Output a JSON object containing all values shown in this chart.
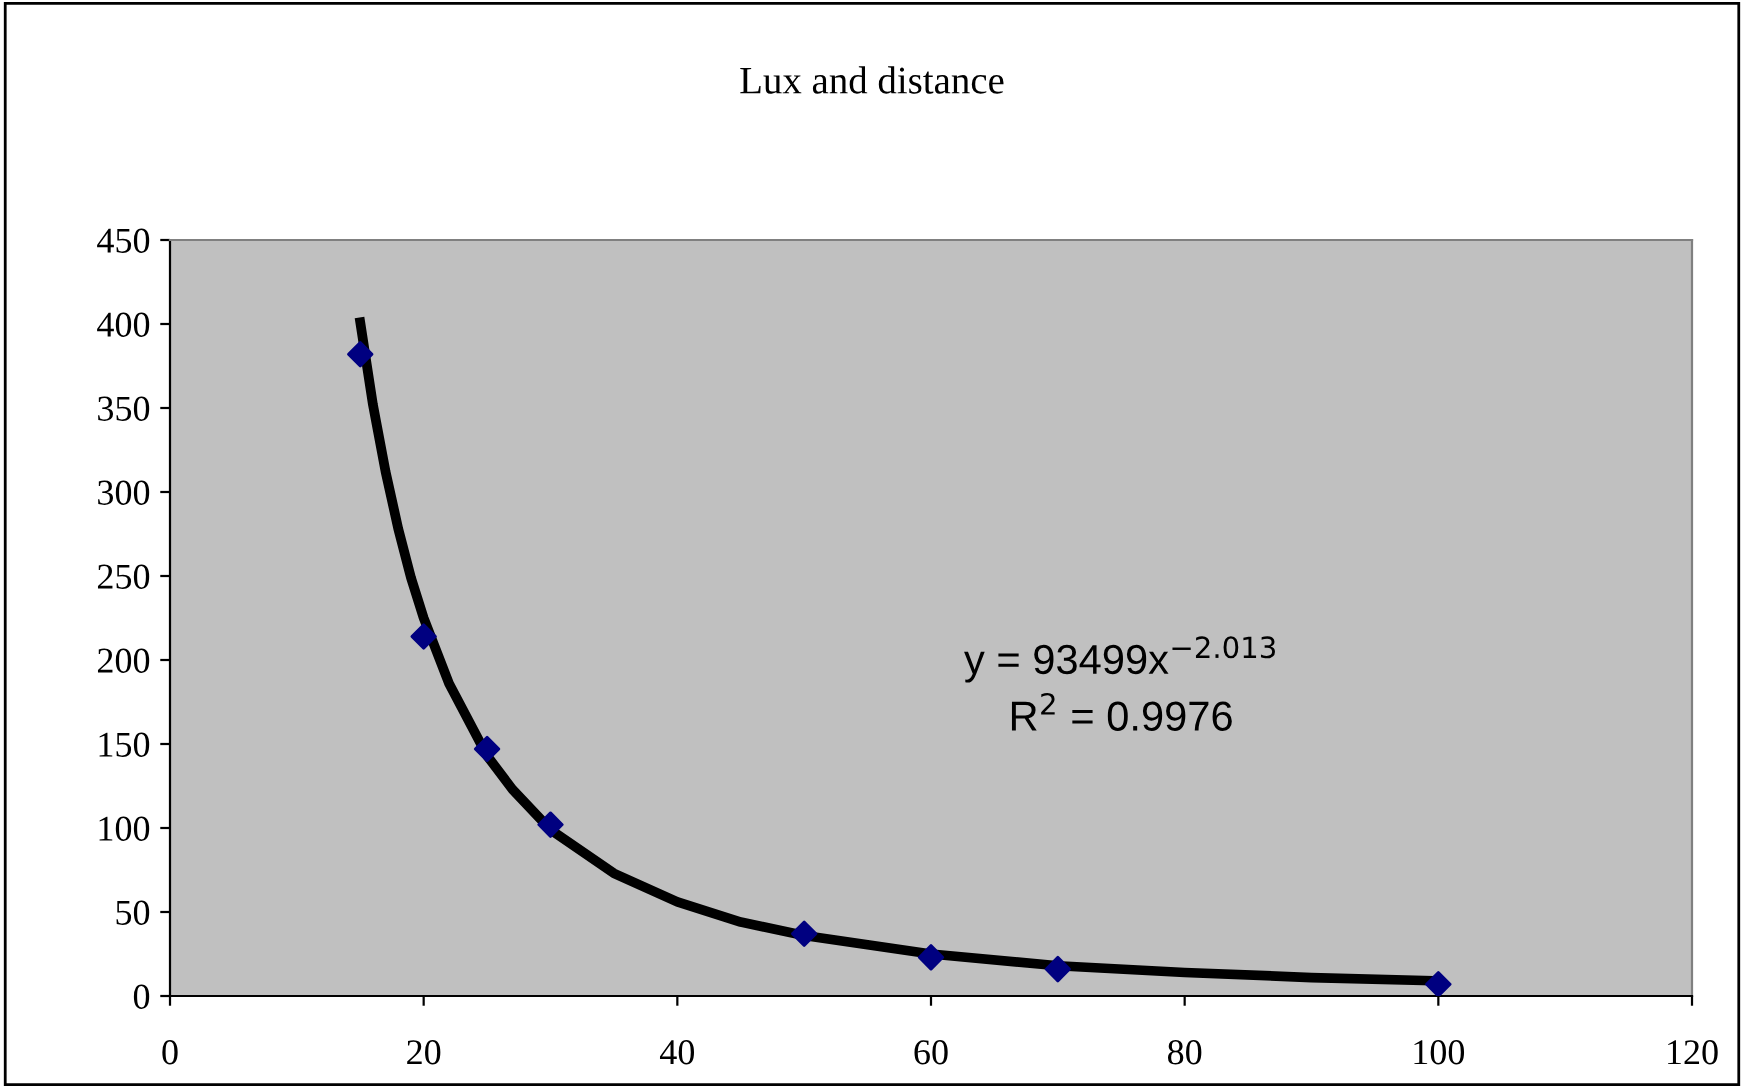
{
  "chart_data": {
    "type": "scatter",
    "title": "Lux and distance",
    "xlim": [
      0,
      120
    ],
    "xticks": [
      0,
      20,
      40,
      60,
      80,
      100,
      120
    ],
    "ylim": [
      0,
      450
    ],
    "yticks": [
      0,
      50,
      100,
      150,
      200,
      250,
      300,
      350,
      400,
      450
    ],
    "grid": false,
    "legend": false,
    "series": [
      {
        "color": "#000080",
        "marker": "diamond",
        "x": [
          15,
          20,
          25,
          30,
          50,
          60,
          70,
          100
        ],
        "values": [
          382,
          214,
          147,
          102,
          37,
          23,
          16,
          7
        ]
      },
      {
        "type": "line",
        "color": "#000000",
        "line_style": "solid",
        "x": [
          15,
          16,
          17,
          18,
          19,
          20,
          22,
          25,
          27,
          30,
          35,
          40,
          45,
          50,
          60,
          70,
          80,
          90,
          100
        ],
        "values": [
          401,
          352,
          312,
          278,
          249,
          225,
          186,
          143,
          123,
          99,
          73,
          56,
          44,
          36,
          25,
          18,
          14,
          11,
          9
        ]
      }
    ],
    "annotations": [
      "y = 93499x$^{−2.013}$",
      "R$^{2}$ = 0.9976"
    ]
  }
}
